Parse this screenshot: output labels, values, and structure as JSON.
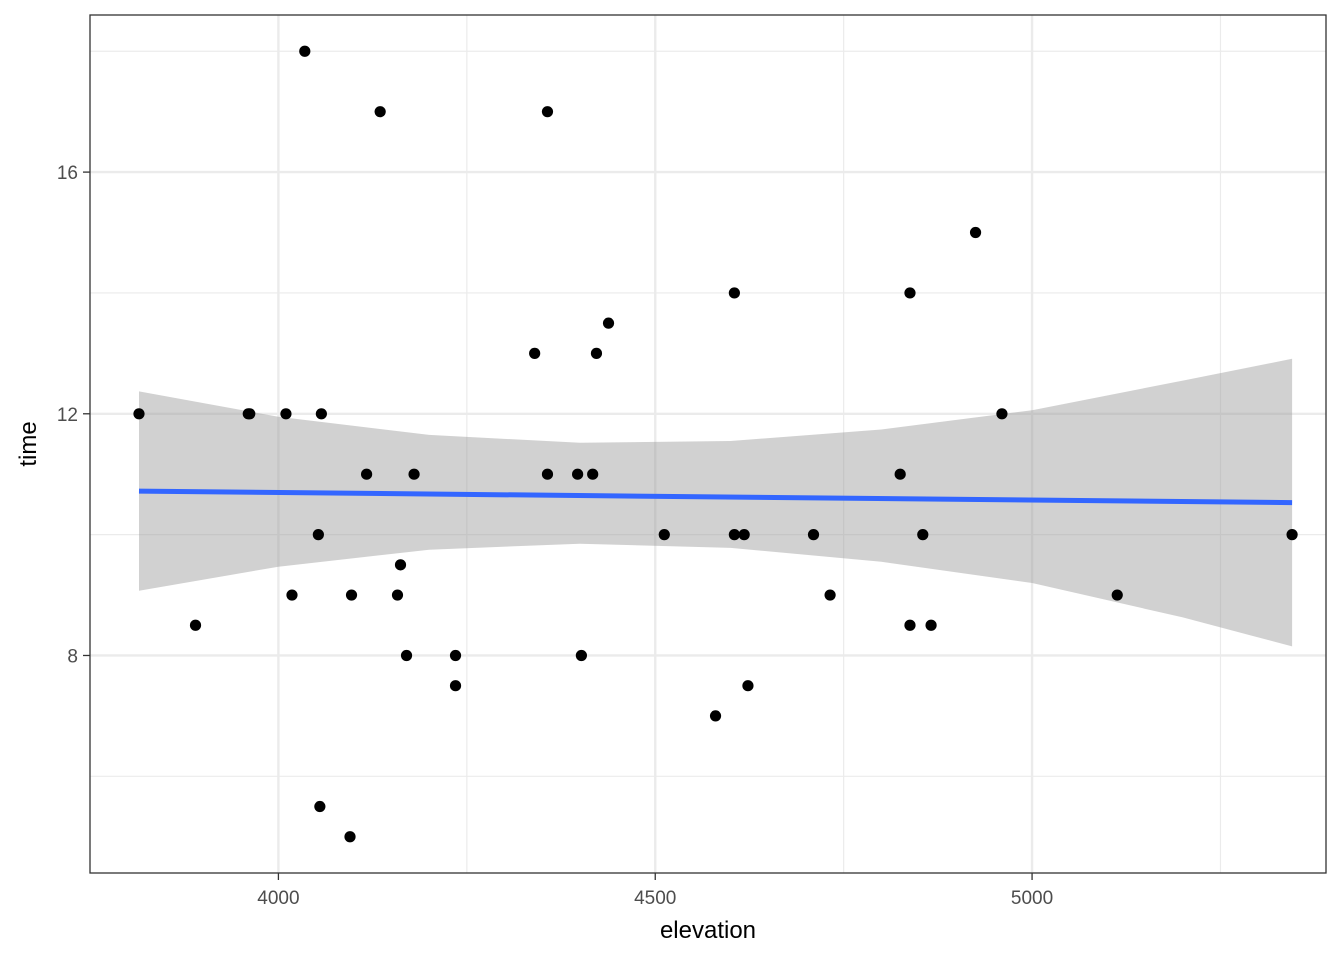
{
  "chart_data": {
    "type": "scatter",
    "xlabel": "elevation",
    "ylabel": "time",
    "xlim": [
      3750,
      5390
    ],
    "ylim": [
      4.4,
      18.6
    ],
    "x_ticks": [
      4000,
      4500,
      5000
    ],
    "x_tick_labels": [
      "4000",
      "4500",
      "5000"
    ],
    "x_minor": [
      3750,
      4250,
      4750,
      5250
    ],
    "y_ticks": [
      8,
      12,
      16
    ],
    "y_tick_labels": [
      "8",
      "12",
      "16"
    ],
    "y_minor": [
      6,
      10,
      14,
      18
    ],
    "grid": true,
    "points": [
      {
        "x": 3815,
        "y": 12
      },
      {
        "x": 3890,
        "y": 8.5
      },
      {
        "x": 3960,
        "y": 12
      },
      {
        "x": 3962,
        "y": 12
      },
      {
        "x": 4010,
        "y": 12
      },
      {
        "x": 4018,
        "y": 9
      },
      {
        "x": 4035,
        "y": 18
      },
      {
        "x": 4053,
        "y": 10
      },
      {
        "x": 4055,
        "y": 5.5
      },
      {
        "x": 4057,
        "y": 12
      },
      {
        "x": 4095,
        "y": 5
      },
      {
        "x": 4097,
        "y": 9
      },
      {
        "x": 4117,
        "y": 11
      },
      {
        "x": 4135,
        "y": 17
      },
      {
        "x": 4158,
        "y": 9
      },
      {
        "x": 4162,
        "y": 9.5
      },
      {
        "x": 4170,
        "y": 8
      },
      {
        "x": 4180,
        "y": 11
      },
      {
        "x": 4235,
        "y": 8
      },
      {
        "x": 4235,
        "y": 7.5
      },
      {
        "x": 4340,
        "y": 13
      },
      {
        "x": 4357,
        "y": 17
      },
      {
        "x": 4357,
        "y": 11
      },
      {
        "x": 4397,
        "y": 11
      },
      {
        "x": 4402,
        "y": 8
      },
      {
        "x": 4417,
        "y": 11
      },
      {
        "x": 4422,
        "y": 13
      },
      {
        "x": 4438,
        "y": 13.5
      },
      {
        "x": 4512,
        "y": 10
      },
      {
        "x": 4580,
        "y": 7
      },
      {
        "x": 4605,
        "y": 14
      },
      {
        "x": 4605,
        "y": 10
      },
      {
        "x": 4618,
        "y": 10
      },
      {
        "x": 4623,
        "y": 7.5
      },
      {
        "x": 4710,
        "y": 10
      },
      {
        "x": 4732,
        "y": 9
      },
      {
        "x": 4825,
        "y": 11
      },
      {
        "x": 4838,
        "y": 14
      },
      {
        "x": 4838,
        "y": 8.5
      },
      {
        "x": 4855,
        "y": 10
      },
      {
        "x": 4866,
        "y": 8.5
      },
      {
        "x": 4925,
        "y": 15
      },
      {
        "x": 4960,
        "y": 12
      },
      {
        "x": 5113,
        "y": 9
      },
      {
        "x": 5345,
        "y": 10
      }
    ],
    "trend_line": {
      "x": [
        3815,
        5345
      ],
      "y": [
        10.72,
        10.53
      ],
      "color": "#3366ff"
    },
    "confidence_band": {
      "x": [
        3815,
        4000,
        4200,
        4400,
        4600,
        4800,
        5000,
        5200,
        5345
      ],
      "upper": [
        12.37,
        11.95,
        11.65,
        11.52,
        11.55,
        11.74,
        12.06,
        12.55,
        12.91
      ],
      "lower": [
        9.07,
        9.47,
        9.75,
        9.85,
        9.78,
        9.55,
        9.2,
        8.63,
        8.15
      ],
      "color": "#999999"
    },
    "point_color": "#000000"
  }
}
